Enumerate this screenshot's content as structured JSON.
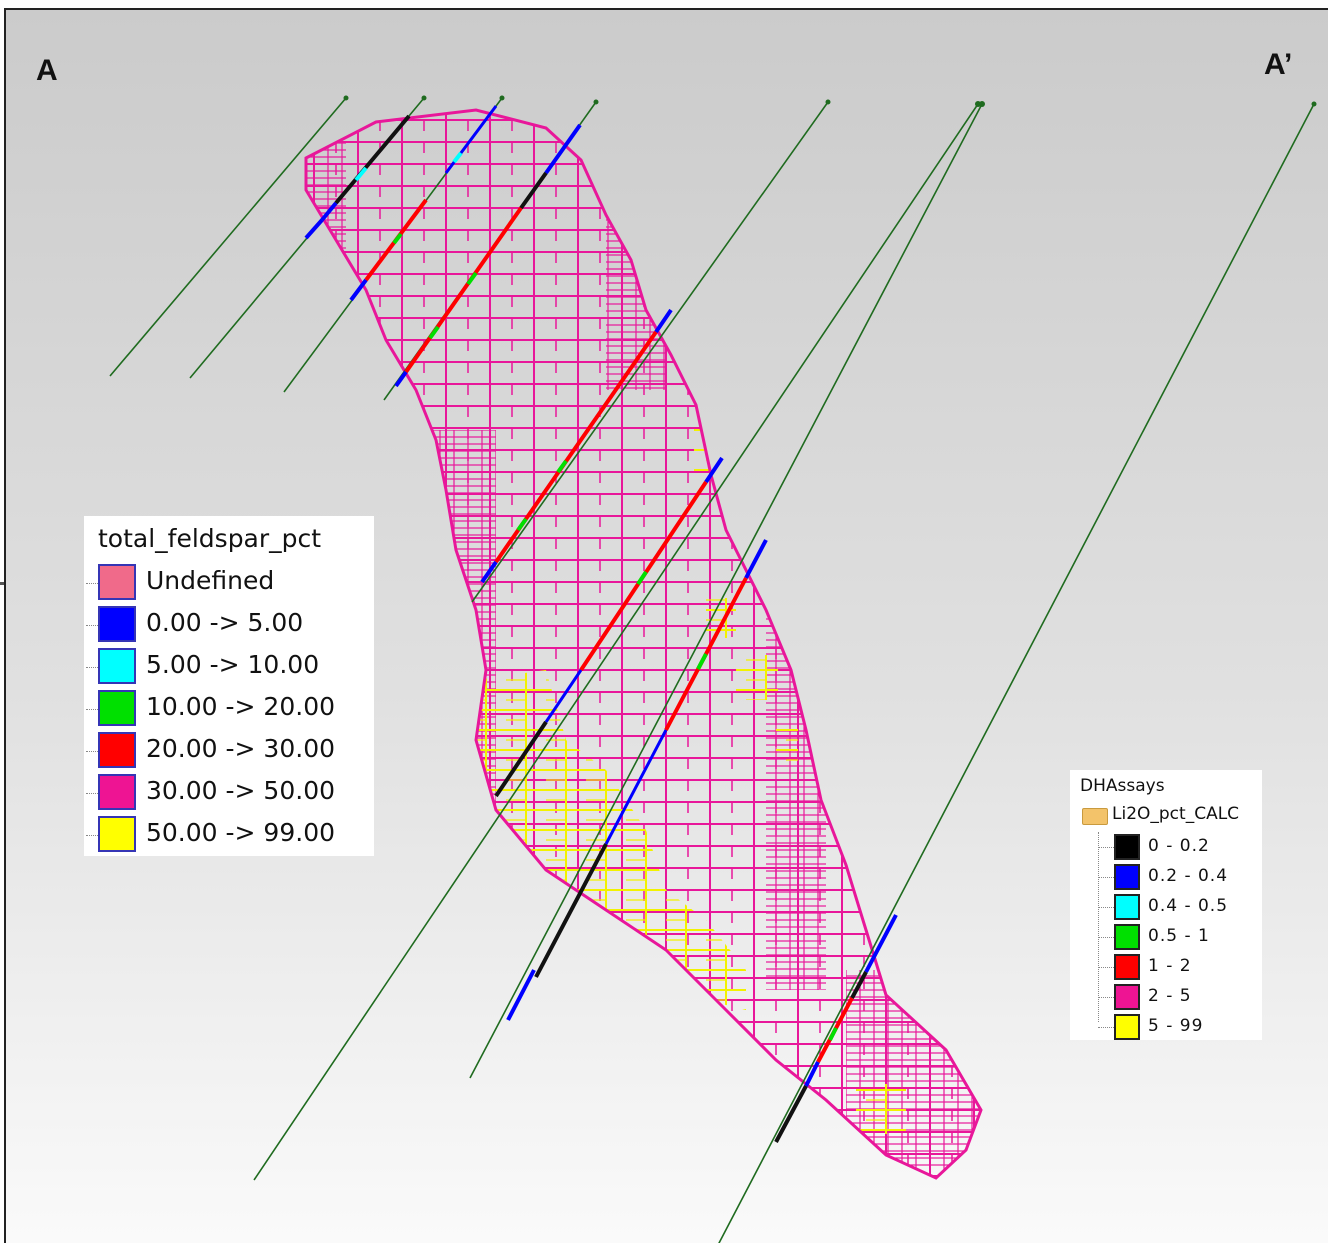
{
  "section": {
    "label_left": "A",
    "label_right": "A’"
  },
  "legend_feldspar": {
    "title": "total_feldspar_pct",
    "items": [
      {
        "label": "Undefined",
        "color": "#f06a8a"
      },
      {
        "label": "0.00 -> 5.00",
        "color": "#0000ff"
      },
      {
        "label": "5.00 -> 10.00",
        "color": "#00ffff"
      },
      {
        "label": "10.00 -> 20.00",
        "color": "#00e000"
      },
      {
        "label": "20.00 -> 30.00",
        "color": "#ff0000"
      },
      {
        "label": "30.00 -> 50.00",
        "color": "#ee1493"
      },
      {
        "label": "50.00 -> 99.00",
        "color": "#ffff00"
      }
    ]
  },
  "legend_assays": {
    "title": "DHAssays",
    "folder": "Li2O_pct_CALC",
    "items": [
      {
        "label": "0 - 0.2",
        "color": "#000000"
      },
      {
        "label": "0.2 - 0.4",
        "color": "#0000ff"
      },
      {
        "label": "0.4 - 0.5",
        "color": "#00ffff"
      },
      {
        "label": "0.5 - 1",
        "color": "#00e000"
      },
      {
        "label": "1 - 2",
        "color": "#ff0000"
      },
      {
        "label": "2 - 5",
        "color": "#ee1493"
      },
      {
        "label": "5 - 99",
        "color": "#ffff00"
      }
    ]
  },
  "colors": {
    "block_outline": "#e8179a",
    "block_yellow": "#ffff00",
    "drillhole_trace": "#1f6b1f",
    "drillhole_core": "#111111"
  }
}
